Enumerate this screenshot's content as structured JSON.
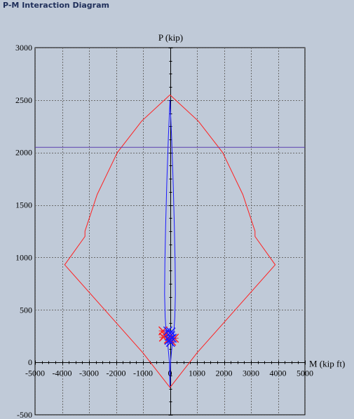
{
  "window": {
    "title": "P-M Interaction Diagram"
  },
  "colors": {
    "background": "#c0cad8",
    "plot_background": "#c0cad8",
    "grid": "#6b6b6b",
    "axis": "#000000",
    "capacity_curve": "#ff2020",
    "demand_curve": "#1a1aff",
    "reference_line": "#5a3fb0"
  },
  "chart_data": {
    "type": "line",
    "title": "",
    "xlabel": "M (kip ft)",
    "ylabel": "P (kip)",
    "xlim": [
      -5000,
      5000
    ],
    "ylim": [
      -500,
      3000
    ],
    "x_ticks": [
      -5000,
      -4000,
      -3000,
      -2000,
      -1000,
      0,
      1000,
      2000,
      3000,
      4000,
      5000
    ],
    "y_ticks": [
      -500,
      0,
      500,
      1000,
      1500,
      2000,
      2500,
      3000
    ],
    "grid": true,
    "legend": "none",
    "series": [
      {
        "color": "#ff2020",
        "x": [
          0,
          -1050,
          -1950,
          -2700,
          -3150,
          -3150,
          -3900,
          -2000,
          -1000,
          0,
          1000,
          2000,
          3900,
          3150,
          3150,
          2700,
          1950,
          1050,
          0
        ],
        "y": [
          2550,
          2300,
          2000,
          1600,
          1250,
          1200,
          930,
          380,
          90,
          -240,
          90,
          380,
          930,
          1200,
          1250,
          1600,
          2000,
          2300,
          2550
        ]
      },
      {
        "color": "#1a1aff",
        "x": [
          0,
          60,
          120,
          160,
          190,
          200,
          180,
          140,
          80,
          20,
          0,
          -20,
          -80,
          -140,
          -180,
          -200,
          -190,
          -160,
          -120,
          -60,
          0
        ],
        "y": [
          2500,
          2150,
          1700,
          1300,
          950,
          650,
          430,
          280,
          170,
          0,
          -230,
          0,
          170,
          280,
          430,
          650,
          950,
          1300,
          1700,
          2150,
          2500
        ]
      },
      {
        "color": "#5a3fb0",
        "x": [
          -5000,
          5000
        ],
        "y": [
          2050,
          2050
        ]
      }
    ],
    "markers": {
      "red_x": [
        {
          "x": -260,
          "y": 300
        },
        {
          "x": -180,
          "y": 260
        },
        {
          "x": -60,
          "y": 220
        },
        {
          "x": 60,
          "y": 200
        },
        {
          "x": 160,
          "y": 230
        },
        {
          "x": -240,
          "y": 240
        }
      ],
      "blue_x": [
        {
          "x": -80,
          "y": 300
        },
        {
          "x": 40,
          "y": 290
        },
        {
          "x": 0,
          "y": 250
        },
        {
          "x": -40,
          "y": 210
        },
        {
          "x": 80,
          "y": 230
        },
        {
          "x": 20,
          "y": 190
        }
      ]
    }
  }
}
